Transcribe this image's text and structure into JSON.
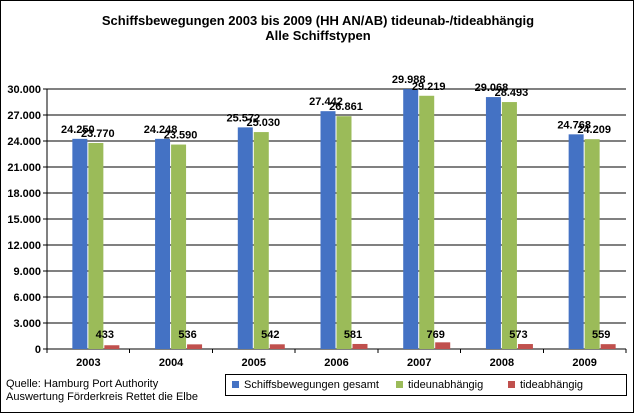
{
  "chart_data": {
    "type": "bar",
    "title": "Schiffsbewegungen  2003 bis 2009 (HH AN/AB) tideunab-/tideabhängig",
    "subtitle": "Alle Schiffstypen",
    "categories": [
      "2003",
      "2004",
      "2005",
      "2006",
      "2007",
      "2008",
      "2009"
    ],
    "series": [
      {
        "name": "Schiffsbewegungen gesamt",
        "color": "#4472C4",
        "values": [
          24250,
          24248,
          25572,
          27442,
          29988,
          29068,
          24768
        ],
        "labels": [
          "24.250",
          "24.248",
          "25.572",
          "27.442",
          "29.988",
          "29.068",
          "24.768"
        ]
      },
      {
        "name": "tideunabhängig",
        "color": "#9BBB59",
        "values": [
          23770,
          23590,
          25030,
          26861,
          29219,
          28493,
          24209
        ],
        "labels": [
          "23.770",
          "23.590",
          "25.030",
          "26.861",
          "29.219",
          "28.493",
          "24.209"
        ]
      },
      {
        "name": "tideabhängig",
        "color": "#C0504D",
        "values": [
          433,
          536,
          542,
          581,
          769,
          573,
          559
        ],
        "labels": [
          "433",
          "536",
          "542",
          "581",
          "769",
          "573",
          "559"
        ]
      }
    ],
    "ylim": [
      0,
      30000
    ],
    "yticks": [
      0,
      3000,
      6000,
      9000,
      12000,
      15000,
      18000,
      21000,
      24000,
      27000,
      30000
    ],
    "ytick_labels": [
      "0",
      "3.000",
      "6.000",
      "9.000",
      "12.000",
      "15.000",
      "18.000",
      "21.000",
      "24.000",
      "27.000",
      "30.000"
    ],
    "grid": "horizontal",
    "legend_position": "bottom"
  },
  "source": {
    "line1": "Quelle: Hamburg Port Authority",
    "line2": "Auswertung Förderkreis Rettet die Elbe"
  }
}
